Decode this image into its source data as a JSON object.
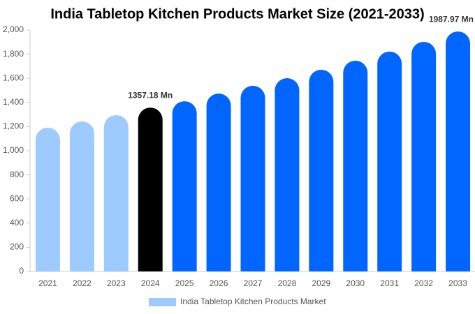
{
  "chart_data": {
    "type": "bar",
    "title": "India Tabletop Kitchen Products Market Size (2021-2033)",
    "categories": [
      "2021",
      "2022",
      "2023",
      "2024",
      "2025",
      "2026",
      "2027",
      "2028",
      "2029",
      "2030",
      "2031",
      "2032",
      "2033"
    ],
    "series": [
      {
        "name": "India Tabletop Kitchen Products Market",
        "color": "#9ecbff",
        "values": [
          1191,
          1243,
          1295,
          1357.18,
          1410,
          1474,
          1538,
          1601,
          1671,
          1746,
          1821,
          1902,
          1987.97
        ],
        "colors": [
          "#9ecbff",
          "#9ecbff",
          "#9ecbff",
          "#000000",
          "#0066ff",
          "#0066ff",
          "#0066ff",
          "#0066ff",
          "#0066ff",
          "#0066ff",
          "#0066ff",
          "#0066ff",
          "#0066ff"
        ],
        "value_labels": [
          null,
          null,
          null,
          "1357.18 Mn",
          null,
          null,
          null,
          null,
          null,
          null,
          null,
          null,
          "1987.97 Mn"
        ]
      }
    ],
    "ylim": [
      0,
      2000
    ],
    "yticks": [
      0,
      200,
      400,
      600,
      800,
      {
        "value": 1000,
        "label": "1,000"
      },
      {
        "value": 1200,
        "label": "1,200"
      },
      {
        "value": 1400,
        "label": "1,400"
      },
      {
        "value": 1600,
        "label": "1,600"
      },
      {
        "value": 1800,
        "label": "1,800"
      },
      {
        "value": 2000,
        "label": "2,000"
      }
    ],
    "legend": "bottom"
  }
}
